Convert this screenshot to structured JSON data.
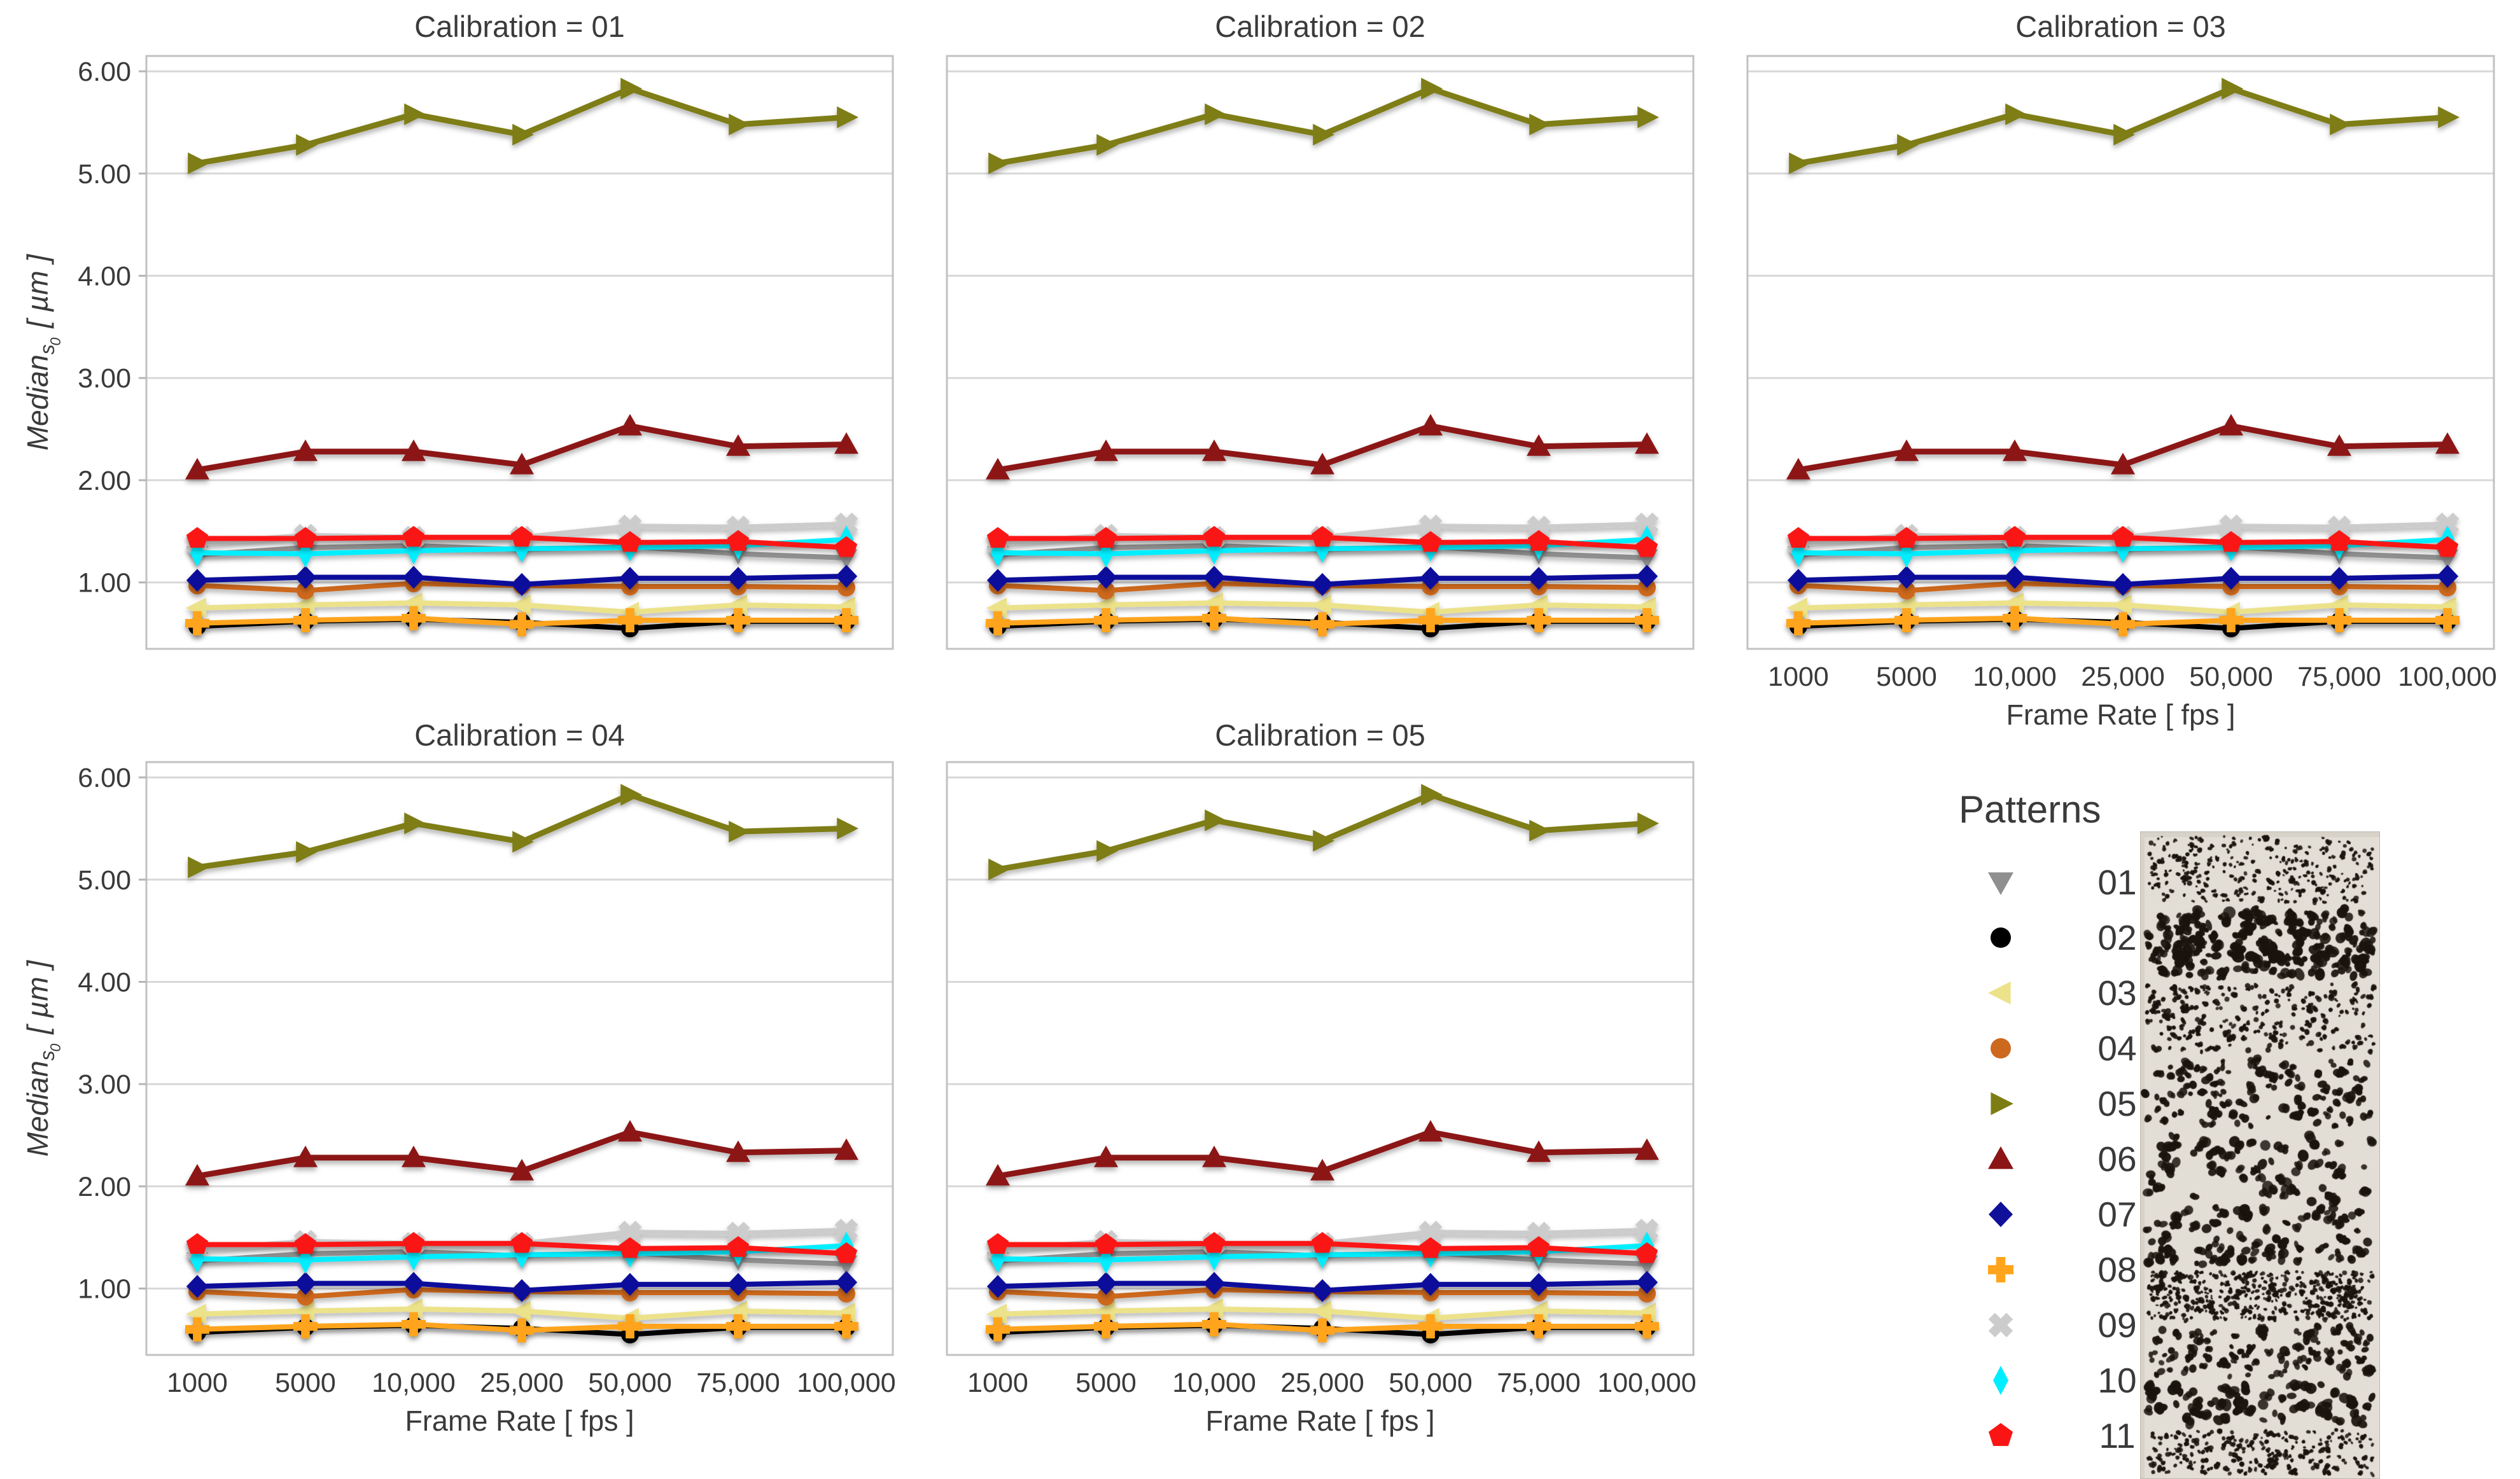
{
  "chart_data": {
    "type": "line",
    "facet_by": "Calibration",
    "x": [
      1000,
      5000,
      10000,
      25000,
      50000,
      75000,
      100000
    ],
    "x_tick_labels": [
      "1000",
      "5000",
      "10,000",
      "25,000",
      "50,000",
      "75,000",
      "100,000"
    ],
    "xlabel": "Frame Rate [ fps ]",
    "ylabel": {
      "base": "Median",
      "sub": "s",
      "sub0": "0",
      "units": "[ µm ]"
    },
    "ylim": [
      0.35,
      6.15
    ],
    "yticks": [
      1,
      2,
      3,
      4,
      5,
      6
    ],
    "ytick_labels": [
      "1.00",
      "2.00",
      "3.00",
      "4.00",
      "5.00",
      "6.00"
    ],
    "grid": "horizontal",
    "legend_position": "bottom-right",
    "facets": [
      {
        "title": "Calibration = 01",
        "show_y_ticks": true,
        "show_x_ticks": false
      },
      {
        "title": "Calibration = 02",
        "show_y_ticks": false,
        "show_x_ticks": false
      },
      {
        "title": "Calibration = 03",
        "show_y_ticks": false,
        "show_x_ticks": true
      },
      {
        "title": "Calibration = 04",
        "show_y_ticks": true,
        "show_x_ticks": true,
        "overrides": {
          "05": [
            5.12,
            5.27,
            5.55,
            5.37,
            5.83,
            5.47,
            5.5
          ]
        }
      },
      {
        "title": "Calibration = 05",
        "show_y_ticks": false,
        "show_x_ticks": true
      }
    ],
    "series": [
      {
        "id": "01",
        "label": "01",
        "color": "#8f8f8f",
        "marker": "triangle-down",
        "values": [
          1.27,
          1.34,
          1.36,
          1.32,
          1.35,
          1.28,
          1.24
        ]
      },
      {
        "id": "02",
        "label": "02",
        "color": "#000000",
        "marker": "circle",
        "values": [
          0.57,
          0.62,
          0.64,
          0.61,
          0.55,
          0.62,
          0.62
        ]
      },
      {
        "id": "03",
        "label": "03",
        "color": "#ece28a",
        "marker": "triangle-left",
        "values": [
          0.75,
          0.78,
          0.8,
          0.78,
          0.71,
          0.78,
          0.76
        ]
      },
      {
        "id": "04",
        "label": "04",
        "color": "#cd681f",
        "marker": "circle",
        "values": [
          0.97,
          0.92,
          0.99,
          0.97,
          0.96,
          0.96,
          0.95
        ]
      },
      {
        "id": "05",
        "label": "05",
        "color": "#7e7d14",
        "marker": "triangle-right",
        "values": [
          5.1,
          5.28,
          5.58,
          5.38,
          5.83,
          5.48,
          5.55
        ]
      },
      {
        "id": "06",
        "label": "06",
        "color": "#8c1515",
        "marker": "triangle-up",
        "values": [
          2.1,
          2.28,
          2.28,
          2.15,
          2.53,
          2.33,
          2.35
        ]
      },
      {
        "id": "07",
        "label": "07",
        "color": "#10109b",
        "marker": "diamond",
        "values": [
          1.02,
          1.05,
          1.05,
          0.98,
          1.04,
          1.04,
          1.06
        ]
      },
      {
        "id": "08",
        "label": "08",
        "color": "#ffa41c",
        "marker": "plus",
        "values": [
          0.6,
          0.63,
          0.65,
          0.59,
          0.63,
          0.63,
          0.63
        ]
      },
      {
        "id": "09",
        "label": "09",
        "color": "#cccccc",
        "marker": "x-cross",
        "values": [
          1.38,
          1.46,
          1.44,
          1.44,
          1.55,
          1.54,
          1.57
        ]
      },
      {
        "id": "10",
        "label": "10",
        "color": "#00eeff",
        "marker": "diamond-thin",
        "values": [
          1.29,
          1.28,
          1.31,
          1.33,
          1.34,
          1.36,
          1.42
        ]
      },
      {
        "id": "11",
        "label": "11",
        "color": "#fb1414",
        "marker": "pentagon",
        "values": [
          1.43,
          1.43,
          1.44,
          1.44,
          1.39,
          1.4,
          1.34
        ]
      }
    ]
  },
  "legend": {
    "title": "Patterns",
    "items": [
      {
        "label": "01"
      },
      {
        "label": "02"
      },
      {
        "label": "03"
      },
      {
        "label": "04"
      },
      {
        "label": "05"
      },
      {
        "label": "06"
      },
      {
        "label": "07"
      },
      {
        "label": "08"
      },
      {
        "label": "09"
      },
      {
        "label": "10"
      },
      {
        "label": "11"
      }
    ]
  },
  "patterns_image": {
    "description": "grayscale photo of stacked speckle dot-pattern bands of varying dot size and density"
  }
}
